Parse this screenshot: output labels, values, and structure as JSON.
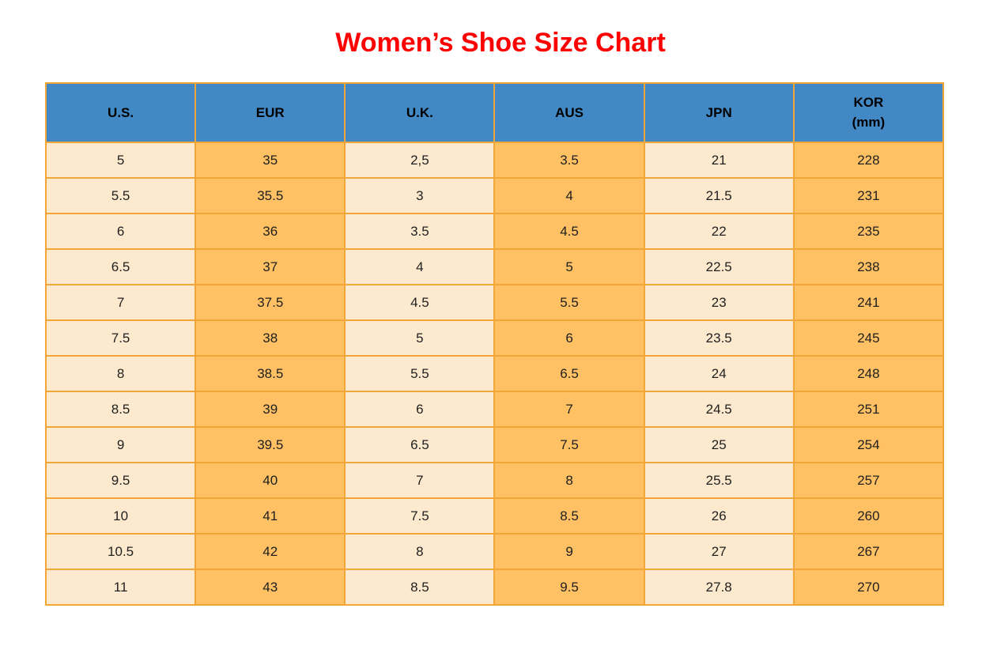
{
  "title": {
    "text": "Women’s Shoe Size Chart"
  },
  "theme": {
    "title_red": "#FF0000",
    "header_blue": "#4288C4",
    "cell_cream": "#FDEACE",
    "cell_orange": "#FFC164",
    "border_orange": "#F2A637",
    "header_text": "#000000",
    "cell_text": "#1F1F1F",
    "page_background": "#FFFFFF"
  },
  "table": {
    "headers": [
      {
        "id": "us",
        "lines": [
          "U.S."
        ]
      },
      {
        "id": "eur",
        "lines": [
          "EUR"
        ]
      },
      {
        "id": "uk",
        "lines": [
          "U.K."
        ]
      },
      {
        "id": "aus",
        "lines": [
          "AUS"
        ]
      },
      {
        "id": "jpn",
        "lines": [
          "JPN"
        ]
      },
      {
        "id": "kor",
        "lines": [
          "KOR",
          "(mm)"
        ]
      }
    ],
    "column_fill_pattern": [
      "cream",
      "orange",
      "cream",
      "orange",
      "cream",
      "orange"
    ]
  },
  "chart_data": {
    "type": "table",
    "title": "Women’s Shoe Size Chart",
    "columns": [
      "U.S.",
      "EUR",
      "U.K.",
      "AUS",
      "JPN",
      "KOR (mm)"
    ],
    "rows": [
      [
        "5",
        "35",
        "2,5",
        "3.5",
        "21",
        "228"
      ],
      [
        "5.5",
        "35.5",
        "3",
        "4",
        "21.5",
        "231"
      ],
      [
        "6",
        "36",
        "3.5",
        "4.5",
        "22",
        "235"
      ],
      [
        "6.5",
        "37",
        "4",
        "5",
        "22.5",
        "238"
      ],
      [
        "7",
        "37.5",
        "4.5",
        "5.5",
        "23",
        "241"
      ],
      [
        "7.5",
        "38",
        "5",
        "6",
        "23.5",
        "245"
      ],
      [
        "8",
        "38.5",
        "5.5",
        "6.5",
        "24",
        "248"
      ],
      [
        "8.5",
        "39",
        "6",
        "7",
        "24.5",
        "251"
      ],
      [
        "9",
        "39.5",
        "6.5",
        "7.5",
        "25",
        "254"
      ],
      [
        "9.5",
        "40",
        "7",
        "8",
        "25.5",
        "257"
      ],
      [
        "10",
        "41",
        "7.5",
        "8.5",
        "26",
        "260"
      ],
      [
        "10.5",
        "42",
        "8",
        "9",
        "27",
        "267"
      ],
      [
        "11",
        "43",
        "8.5",
        "9.5",
        "27.8",
        "270"
      ]
    ]
  }
}
